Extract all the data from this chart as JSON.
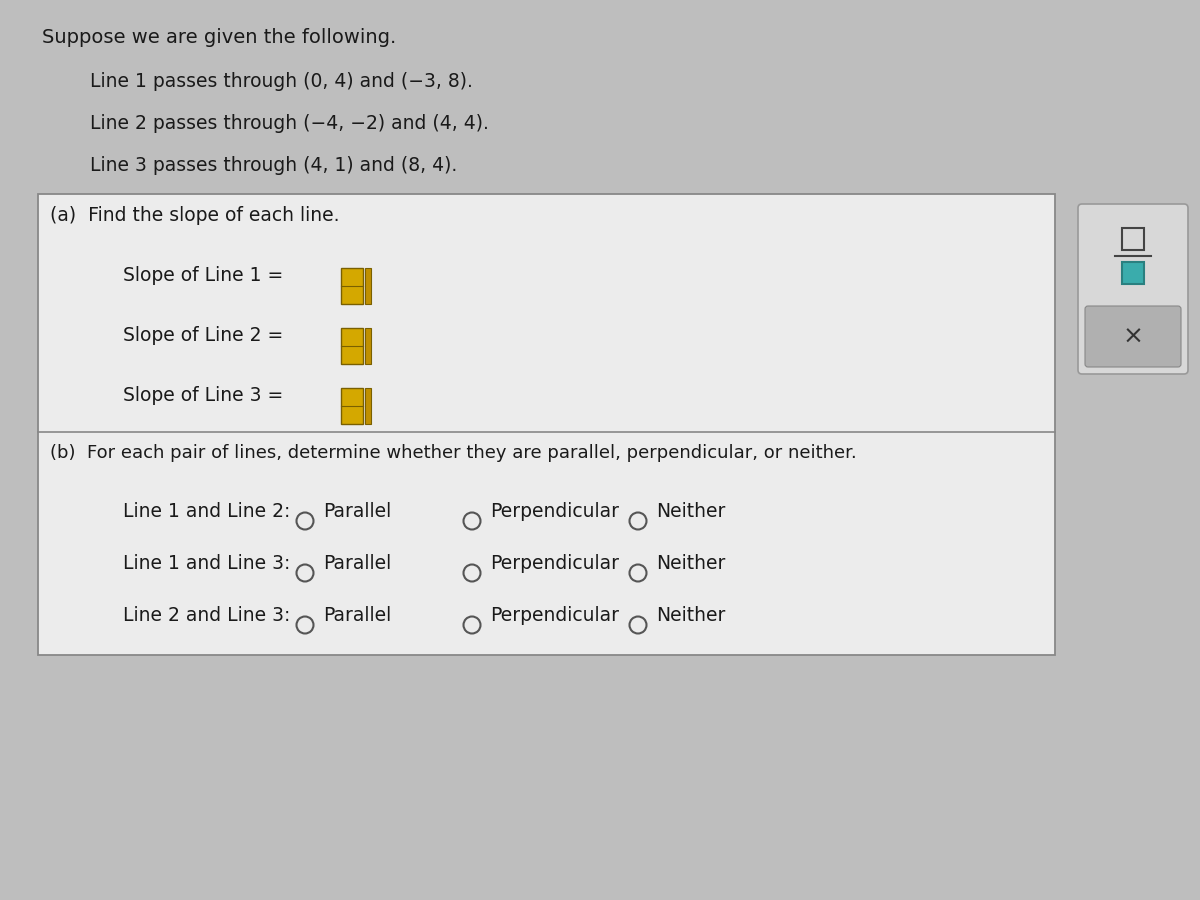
{
  "bg_color": "#bebebe",
  "box_bg": "#ececec",
  "title": "Suppose we are given the following.",
  "line_texts": [
    "Line 1 passes through (0, 4) and (−3, 8).",
    "Line 2 passes through (−4, −2) and (4, 4).",
    "Line 3 passes through (4, 1) and (8, 4)."
  ],
  "part_a_title": "(a)  Find the slope of each line.",
  "slope_labels": [
    "Slope of Line 1 =",
    "Slope of Line 2 =",
    "Slope of Line 3 ="
  ],
  "part_b_title": "(b)  For each pair of lines, determine whether they are parallel, perpendicular, or neither.",
  "pairs": [
    "Line 1 and Line 2:",
    "Line 1 and Line 3:",
    "Line 2 and Line 3:"
  ],
  "options": [
    "Parallel",
    "Perpendicular",
    "Neither"
  ],
  "input_box_color_main": "#d4a800",
  "input_box_color_side": "#c09000",
  "input_box_border": "#7a6000",
  "right_panel_outer_bg": "#d8d8d8",
  "right_panel_inner_bg": "#c8c8c8",
  "fraction_top_color": "#4a4a4a",
  "fraction_bottom_color": "#2a8a8a",
  "x_button_bg": "#b0b0b0",
  "divider_color": "#888888",
  "box_border_color": "#888888",
  "text_color": "#1a1a1a",
  "radio_color": "#555555"
}
